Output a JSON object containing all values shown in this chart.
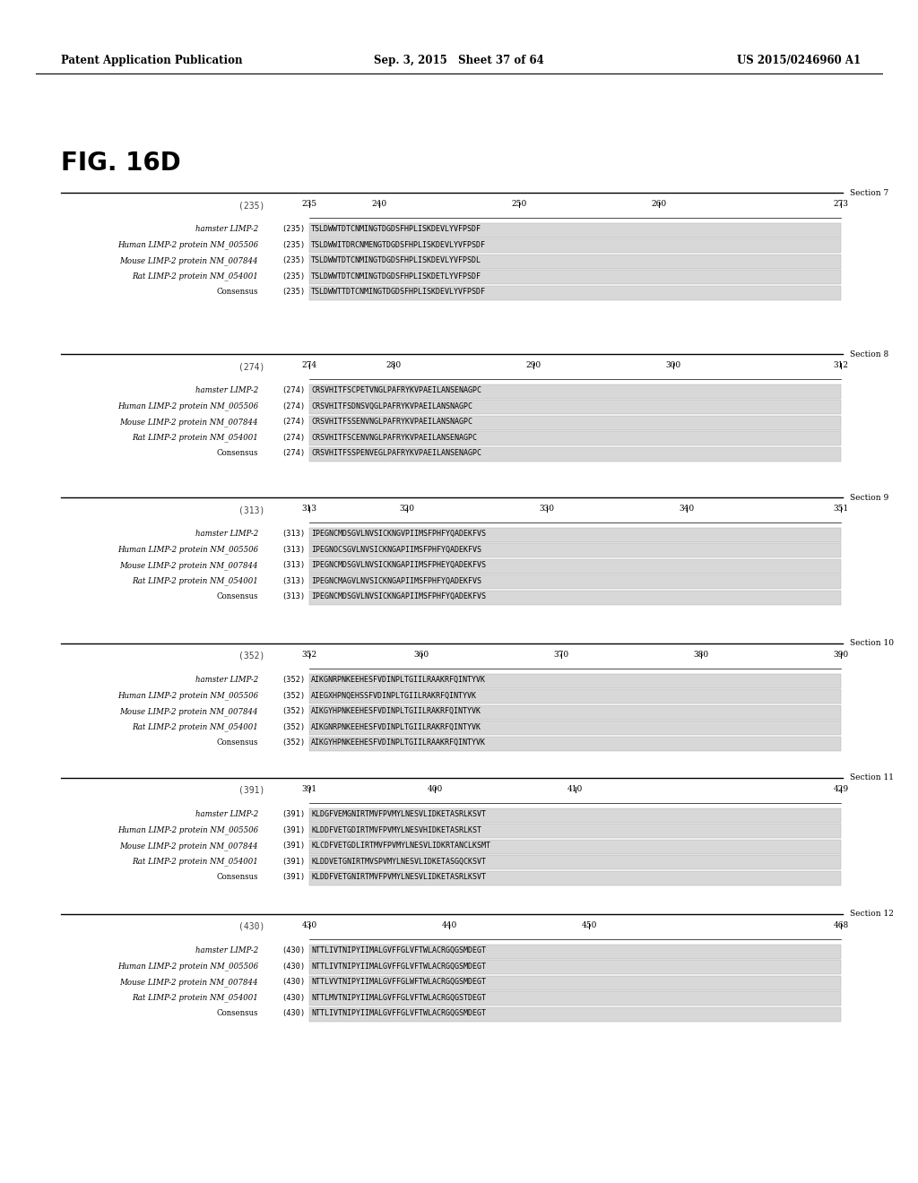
{
  "background_color": "#ffffff",
  "header_left": "Patent Application Publication",
  "header_center": "Sep. 3, 2015   Sheet 37 of 64",
  "header_right": "US 2015/0246960 A1",
  "figure_label": "FIG. 16D",
  "sections": [
    {
      "section_label": "Section 7",
      "num_range_label": "(235)",
      "ruler_ticks": [
        235,
        240,
        250,
        260,
        273
      ],
      "ruler_tick_labels": [
        "235",
        "240",
        "250",
        "260",
        "273"
      ],
      "sequences": [
        {
          "label": "hamster LIMP-2",
          "num": "(235)",
          "seq": "TSLDWWTDTCNMINGTDGDSFHPLISKDEVLYVFPSDF"
        },
        {
          "label": "Human LIMP-2 protein NM_005506",
          "num": "(235)",
          "seq": "TSLDWWITDRCNMENGTDGDSFHPLISKDEVLYVFPSDF"
        },
        {
          "label": "Mouse LIMP-2 protein NM_007844",
          "num": "(235)",
          "seq": "TSLDWWTDTCNMINGTDGDSFHPLISKDEVLYVFPSDL"
        },
        {
          "label": "Rat LIMP-2 protein NM_054001",
          "num": "(235)",
          "seq": "TSLDWWTDTCNMINGTDGDSFHPLISKDETLYVFPSDF"
        },
        {
          "label": "Consensus",
          "num": "(235)",
          "seq": "TSLDWWTTDTCNMINGTDGDSFHPLISKDEVLYVFPSDF"
        }
      ]
    },
    {
      "section_label": "Section 8",
      "num_range_label": "(274)",
      "ruler_ticks": [
        274,
        280,
        290,
        300,
        312
      ],
      "ruler_tick_labels": [
        "274",
        "280",
        "290",
        "300",
        "312"
      ],
      "sequences": [
        {
          "label": "hamster LIMP-2",
          "num": "(274)",
          "seq": "CRSVHITFSCPETVNGLPAFRYKVPAEILANSENAGPC"
        },
        {
          "label": "Human LIMP-2 protein NM_005506",
          "num": "(274)",
          "seq": "CRSVHITFSDNSVQGLPAFRYKVPAEILANSNAGPC"
        },
        {
          "label": "Mouse LIMP-2 protein NM_007844",
          "num": "(274)",
          "seq": "CRSVHITFSSENVNGLPAFRYKVPAEILANSNAGPC"
        },
        {
          "label": "Rat LIMP-2 protein NM_054001",
          "num": "(274)",
          "seq": "CRSVHITFSCENVNGLPAFRYKVPAEILANSENAGPC"
        },
        {
          "label": "Consensus",
          "num": "(274)",
          "seq": "CRSVHITFSSPENVEGLPAFRYKVPAEILANSENAGPC"
        }
      ]
    },
    {
      "section_label": "Section 9",
      "num_range_label": "(313)",
      "ruler_ticks": [
        313,
        320,
        330,
        340,
        351
      ],
      "ruler_tick_labels": [
        "313",
        "320",
        "330",
        "340",
        "351"
      ],
      "sequences": [
        {
          "label": "hamster LIMP-2",
          "num": "(313)",
          "seq": "IPEGNCMDSGVLNVSICKNGVPIIMSFPHFYQADEKFVS"
        },
        {
          "label": "Human LIMP-2 protein NM_005506",
          "num": "(313)",
          "seq": "IPEGNOCSGVLNVSICKNGAPIIMSFPHFYQADEKFVS"
        },
        {
          "label": "Mouse LIMP-2 protein NM_007844",
          "num": "(313)",
          "seq": "IPEGNCMDSGVLNVSICKNGAPIIMSFPHEYQADEKFVS"
        },
        {
          "label": "Rat LIMP-2 protein NM_054001",
          "num": "(313)",
          "seq": "IPEGNCMAGVLNVSICKNGAPIIMSFPHFYQADEKFVS"
        },
        {
          "label": "Consensus",
          "num": "(313)",
          "seq": "IPEGNCMDSGVLNVSICKNGAPIIMSFPHFYQADEKFVS"
        }
      ]
    },
    {
      "section_label": "Section 10",
      "num_range_label": "(352)",
      "ruler_ticks": [
        352,
        360,
        370,
        380,
        390
      ],
      "ruler_tick_labels": [
        "352",
        "360",
        "370",
        "380",
        "390"
      ],
      "sequences": [
        {
          "label": "hamster LIMP-2",
          "num": "(352)",
          "seq": "AIKGNRPNKEEHESFVDINPLTGIILRAAKRFQINTYVK"
        },
        {
          "label": "Human LIMP-2 protein NM_005506",
          "num": "(352)",
          "seq": "AIEGXHPNQEHSSFVDINPLTGIILRAKRFQINTYVK"
        },
        {
          "label": "Mouse LIMP-2 protein NM_007844",
          "num": "(352)",
          "seq": "AIKGYHPNKEEHESFVDINPLTGIILRAKRFQINTYVK"
        },
        {
          "label": "Rat LIMP-2 protein NM_054001",
          "num": "(352)",
          "seq": "AIKGNRPNKEEHESFVDINPLTGIILRAKRFQINTYVK"
        },
        {
          "label": "Consensus",
          "num": "(352)",
          "seq": "AIKGYHPNKEEHESFVDINPLTGIILRAAKRFQINTYVK"
        }
      ]
    },
    {
      "section_label": "Section 11",
      "num_range_label": "(391)",
      "ruler_ticks": [
        391,
        400,
        410,
        429
      ],
      "ruler_tick_labels": [
        "391",
        "400",
        "410",
        "429"
      ],
      "sequences": [
        {
          "label": "hamster LIMP-2",
          "num": "(391)",
          "seq": "KLDGFVEMGNIRTMVFPVMYLNESVLIDKETASRLKSVT"
        },
        {
          "label": "Human LIMP-2 protein NM_005506",
          "num": "(391)",
          "seq": "KLDDFVETGDIRTMVFPVMYLNESVHIDKETASRLKST"
        },
        {
          "label": "Mouse LIMP-2 protein NM_007844",
          "num": "(391)",
          "seq": "KLCDFVETGDLIRTMVFPVMYLNESVLIDKRTANCLKSMT"
        },
        {
          "label": "Rat LIMP-2 protein NM_054001",
          "num": "(391)",
          "seq": "KLDDVETGNIRTMVSPVMYLNESVLIDKETASGQCKSVT"
        },
        {
          "label": "Consensus",
          "num": "(391)",
          "seq": "KLDDFVETGNIRTMVFPVMYLNESVLIDKETASRLKSVT"
        }
      ]
    },
    {
      "section_label": "Section 12",
      "num_range_label": "(430)",
      "ruler_ticks": [
        430,
        440,
        450,
        468
      ],
      "ruler_tick_labels": [
        "430",
        "440",
        "450",
        "468"
      ],
      "sequences": [
        {
          "label": "hamster LIMP-2",
          "num": "(430)",
          "seq": "NTTLIVTNIPYIIMALGVFFGLVFTWLACRGQGSMDEGT"
        },
        {
          "label": "Human LIMP-2 protein NM_005506",
          "num": "(430)",
          "seq": "NTTLIVTNIPYIIMALGVFFGLVFTWLACRGQGSMDEGT"
        },
        {
          "label": "Mouse LIMP-2 protein NM_007844",
          "num": "(430)",
          "seq": "NTTLVVTNIPYIIMALGVFFGLWFTWLACRGQGSMDEGT"
        },
        {
          "label": "Rat LIMP-2 protein NM_054001",
          "num": "(430)",
          "seq": "NTTLMVTNIPYIIMALGVFFGLVFTWLACRGQGSTDEGT"
        },
        {
          "label": "Consensus",
          "num": "(430)",
          "seq": "NTTLIVTNIPYIIMALGVFFGLVFTWLACRGQGSMDEGT"
        }
      ]
    }
  ]
}
